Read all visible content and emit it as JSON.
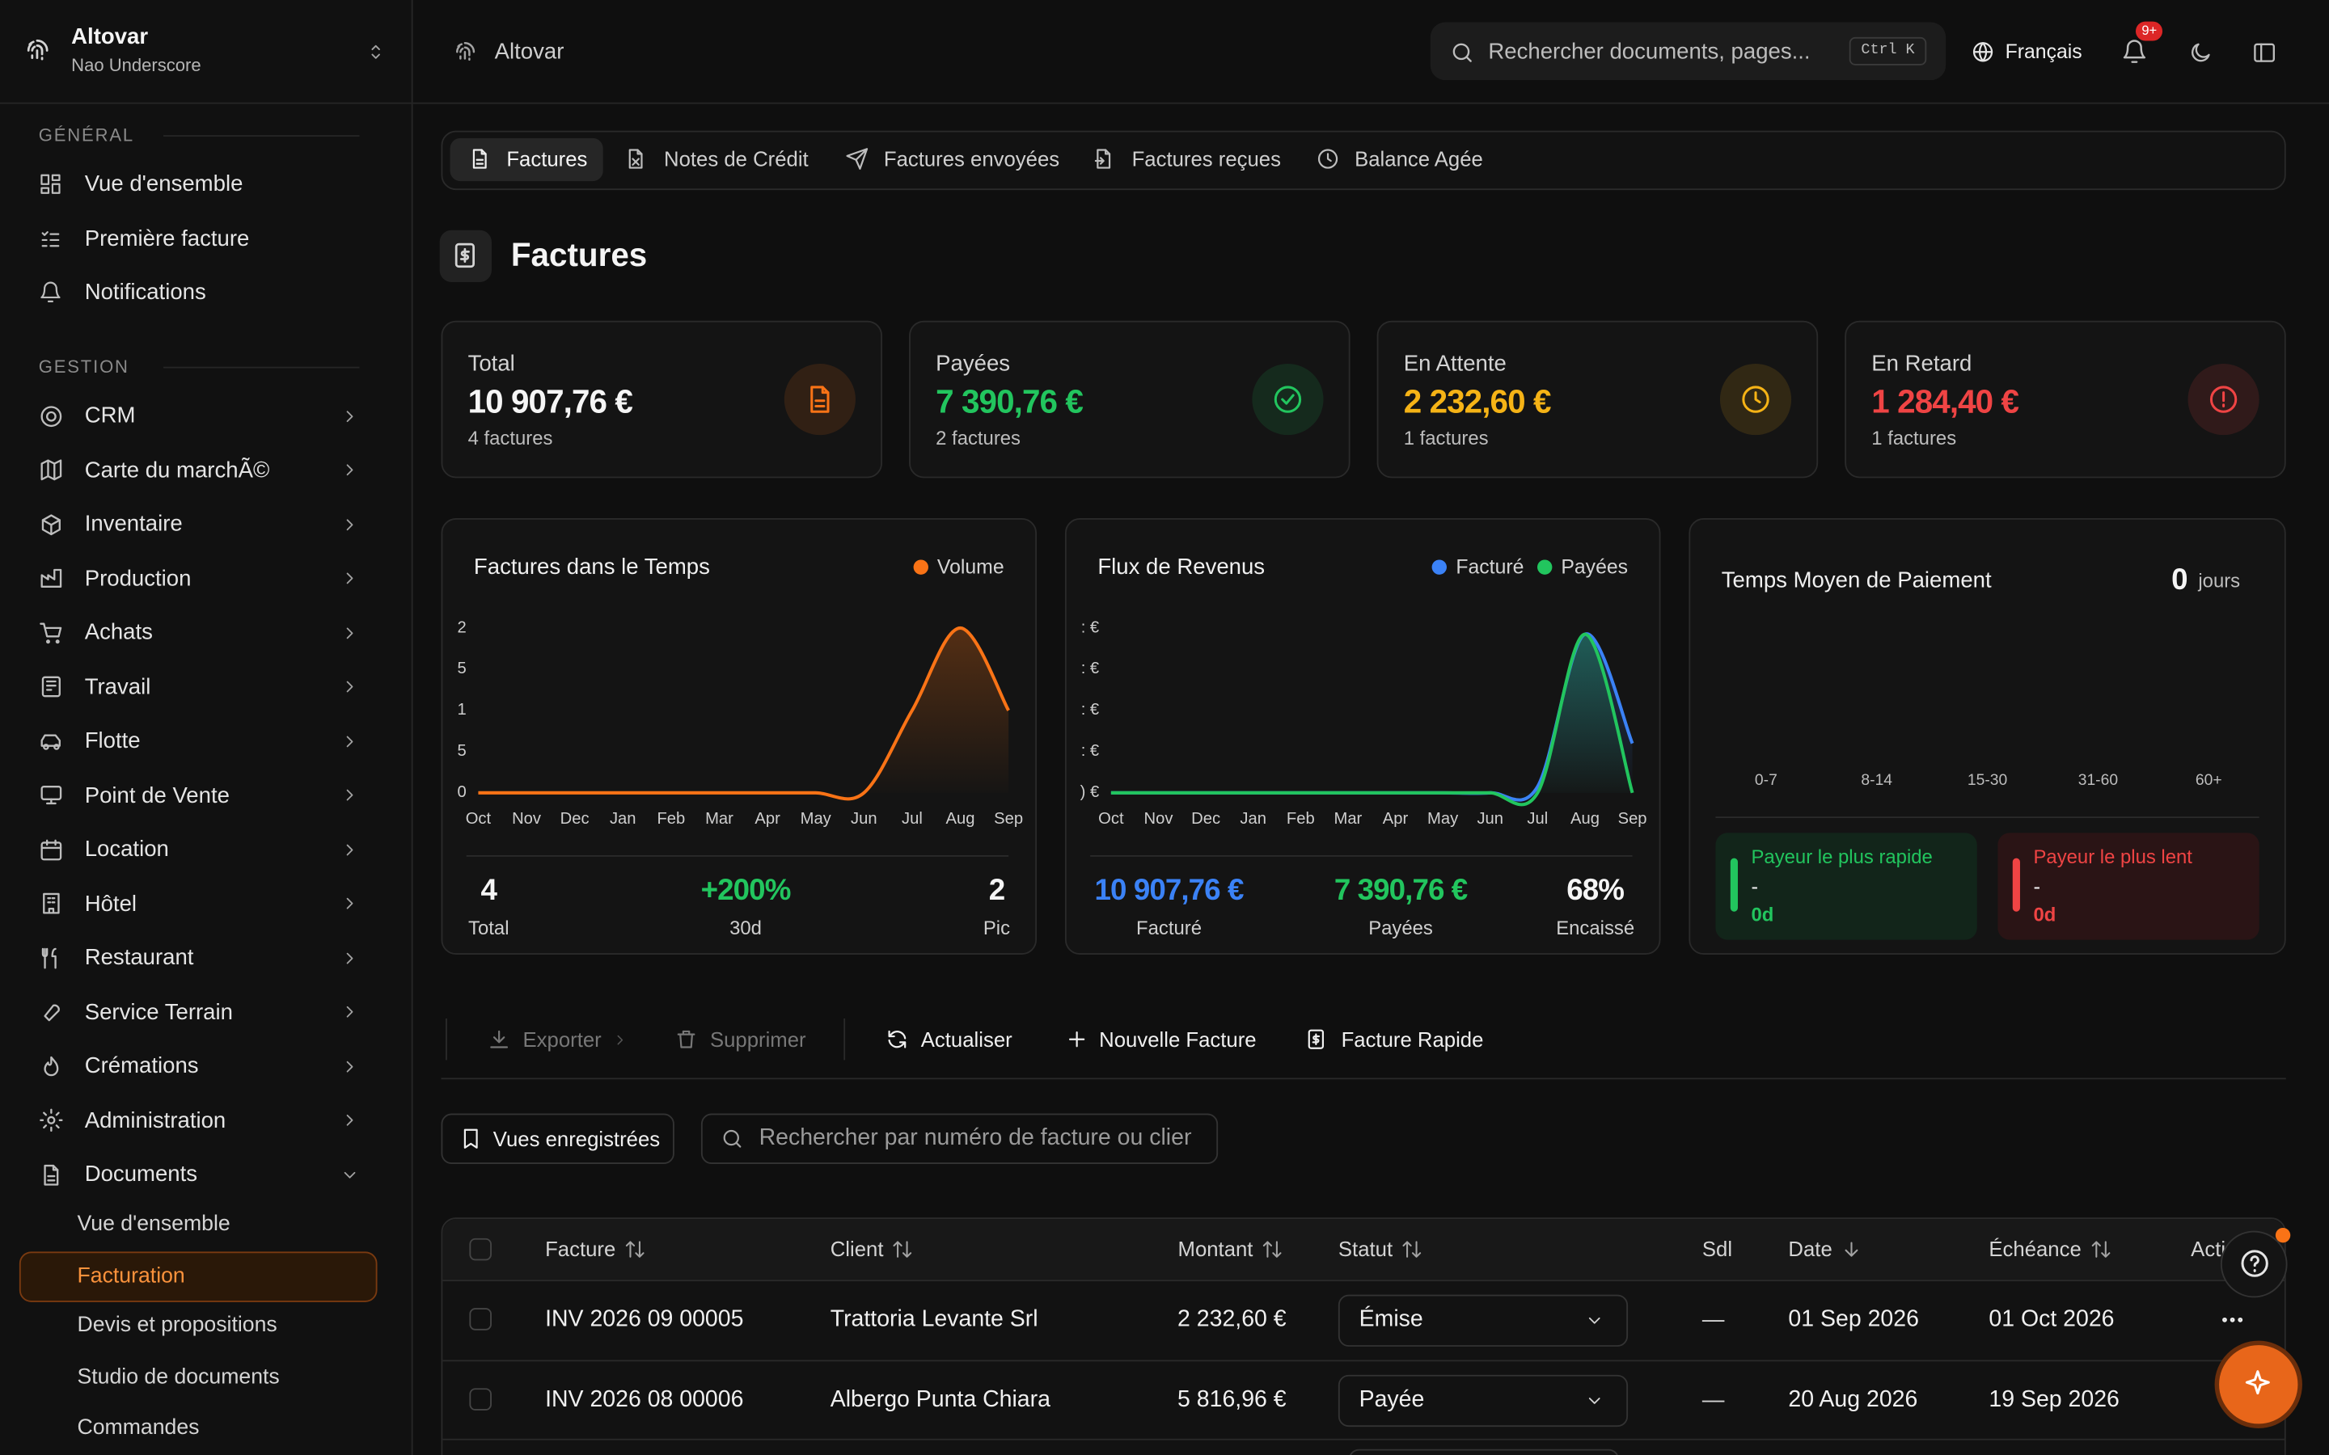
{
  "sidebar": {
    "org": "Altovar",
    "user": "Nao Underscore",
    "general": {
      "title": "GÉNÉRAL",
      "items": [
        "Vue d'ensemble",
        "Première facture",
        "Notifications"
      ]
    },
    "gestion": {
      "title": "GESTION",
      "items": [
        "CRM",
        "Carte du marchÃ©",
        "Inventaire",
        "Production",
        "Achats",
        "Travail",
        "Flotte",
        "Point de Vente",
        "Location",
        "Hôtel",
        "Restaurant",
        "Service Terrain",
        "Crémations",
        "Administration",
        "Documents"
      ]
    },
    "documents": [
      "Vue d'ensemble",
      "Facturation",
      "Devis et propositions",
      "Studio de documents",
      "Commandes"
    ]
  },
  "topbar": {
    "crumb": "Altovar",
    "search": "Rechercher documents, pages...",
    "shortcut": "Ctrl K",
    "language": "Français",
    "badge": "9+"
  },
  "tabs": [
    "Factures",
    "Notes de Crédit",
    "Factures envoyées",
    "Factures reçues",
    "Balance Agée"
  ],
  "page_title": "Factures",
  "kpis": [
    {
      "label": "Total",
      "value": "10 907,76 €",
      "sub": "4 factures",
      "color": "#f5f5f5",
      "accent": "#f97316"
    },
    {
      "label": "Payées",
      "value": "7 390,76 €",
      "sub": "2 factures",
      "color": "#22c55e",
      "accent": "#22c55e"
    },
    {
      "label": "En Attente",
      "value": "2 232,60 €",
      "sub": "1 factures",
      "color": "#f5b316",
      "accent": "#f5b316"
    },
    {
      "label": "En Retard",
      "value": "1 284,40 €",
      "sub": "1 factures",
      "color": "#ef4444",
      "accent": "#ef4444"
    }
  ],
  "chart_data": [
    {
      "type": "line",
      "title": "Factures dans le Temps",
      "categories": [
        "Oct",
        "Nov",
        "Dec",
        "Jan",
        "Feb",
        "Mar",
        "Apr",
        "May",
        "Jun",
        "Jul",
        "Aug",
        "Sep"
      ],
      "series": [
        {
          "name": "Volume",
          "color": "#f97316",
          "values": [
            0,
            0,
            0,
            0,
            0,
            0,
            0,
            0,
            0,
            1,
            2,
            1
          ]
        }
      ],
      "ylim": [
        0,
        2
      ],
      "yticks": [
        0,
        {
          "value": 0.5,
          "label": "5"
        },
        1,
        {
          "value": 1.5,
          "label": "5"
        },
        2
      ],
      "area": true
    },
    {
      "type": "line",
      "title": "Flux de Revenus",
      "categories": [
        "Oct",
        "Nov",
        "Dec",
        "Jan",
        "Feb",
        "Mar",
        "Apr",
        "May",
        "Jun",
        "Jul",
        "Aug",
        "Sep"
      ],
      "series": [
        {
          "name": "Facturé",
          "color": "#3b82f6",
          "values": [
            0,
            0,
            0,
            0,
            0,
            0,
            0,
            0,
            0,
            300,
            7700,
            2400
          ]
        },
        {
          "name": "Payées",
          "color": "#22c55e",
          "values": [
            0,
            0,
            0,
            0,
            0,
            0,
            0,
            0,
            0,
            0,
            7700,
            0
          ]
        }
      ],
      "ylim": [
        0,
        8000
      ],
      "yticks": [
        {
          "value": 0,
          "label": ") €"
        },
        {
          "value": 2000,
          "label": ": €"
        },
        {
          "value": 4000,
          "label": ": €"
        },
        {
          "value": 6000,
          "label": ": €"
        },
        {
          "value": 8000,
          "label": ": €"
        }
      ],
      "area": true
    }
  ],
  "chart_stats": [
    [
      {
        "value": "4",
        "label": "Total",
        "color": "#f5f5f5"
      },
      {
        "value": "+200%",
        "label": "30d",
        "color": "#22c55e"
      },
      {
        "value": "2",
        "label": "Pic",
        "color": "#f5f5f5"
      }
    ],
    [
      {
        "value": "10 907,76 €",
        "label": "Facturé",
        "color": "#3b82f6"
      },
      {
        "value": "7 390,76 €",
        "label": "Payées",
        "color": "#22c55e"
      },
      {
        "value": "68%",
        "label": "Encaissé",
        "color": "#f5f5f5"
      }
    ]
  ],
  "payment_time": {
    "title": "Temps Moyen de Paiement",
    "value": "0",
    "unit": "jours",
    "buckets": [
      "0-7",
      "8-14",
      "15-30",
      "31-60",
      "60+"
    ],
    "fastest": {
      "label": "Payeur le plus rapide",
      "name": "-",
      "days": "0d"
    },
    "slowest": {
      "label": "Payeur le plus lent",
      "name": "-",
      "days": "0d"
    }
  },
  "toolbar": [
    "Exporter",
    "Supprimer",
    "Actualiser",
    "Nouvelle Facture",
    "Facture Rapide"
  ],
  "saved_views": "Vues enregistrées",
  "table_search": "Rechercher par numéro de facture ou client",
  "table": {
    "headers": [
      "Facture",
      "Client",
      "Montant",
      "Statut",
      "Sdl",
      "Date",
      "Échéance",
      "Actions"
    ],
    "rows": [
      [
        "INV 2026 09 00005",
        "Trattoria Levante Srl",
        "2 232,60 €",
        "Émise",
        "—",
        "01 Sep 2026",
        "01 Oct 2026"
      ],
      [
        "INV 2026 08 00006",
        "Albergo Punta Chiara",
        "5 816,96 €",
        "Payée",
        "—",
        "20 Aug 2026",
        "19 Sep 2026"
      ]
    ]
  }
}
